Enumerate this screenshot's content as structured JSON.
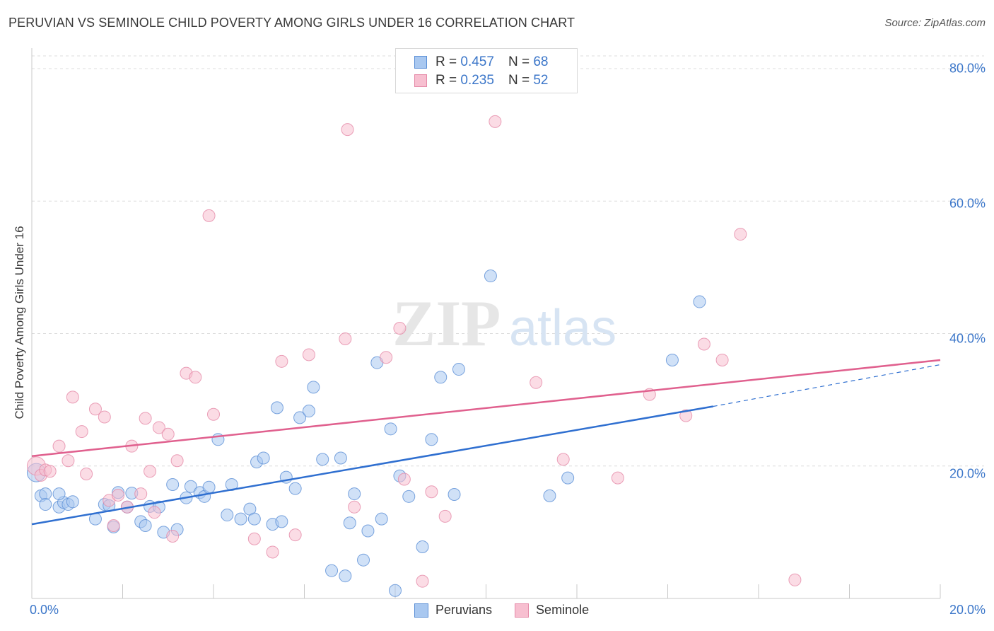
{
  "title": "PERUVIAN VS SEMINOLE CHILD POVERTY AMONG GIRLS UNDER 16 CORRELATION CHART",
  "source": "Source: ZipAtlas.com",
  "watermark": {
    "zip": "ZIP",
    "atlas": "atlas"
  },
  "legend": {
    "r_label": "R = ",
    "n_label": "N = ",
    "rows": [
      {
        "r": "0.457",
        "n": "68"
      },
      {
        "r": "0.235",
        "n": "52"
      }
    ]
  },
  "colors": {
    "blue_fill": "#a9c8f0",
    "blue_edge": "#5b8fd6",
    "blue_line": "#2f6fd0",
    "pink_fill": "#f7bfd0",
    "pink_edge": "#e58aa8",
    "pink_line": "#e0608e",
    "accent_text": "#3b76c9"
  },
  "chart_data": {
    "type": "scatter",
    "title": "PERUVIAN VS SEMINOLE CHILD POVERTY AMONG GIRLS UNDER 16 CORRELATION CHART",
    "xlabel": "",
    "ylabel": "Child Poverty Among Girls Under 16",
    "xlim": [
      0,
      20
    ],
    "ylim": [
      0,
      80
    ],
    "x_tick_labels": [
      "0.0%",
      "20.0%"
    ],
    "y_ticks": [
      20,
      40,
      60,
      80
    ],
    "y_tick_labels": [
      "20.0%",
      "40.0%",
      "60.0%",
      "80.0%"
    ],
    "grid": true,
    "legend_position": "top-center",
    "series": [
      {
        "name": "Peruvians",
        "r": 0.457,
        "n": 68,
        "trend": {
          "x0": 0,
          "y0": 11.2,
          "x1": 15.0,
          "y1": 29.0,
          "dashed_to_x": 20,
          "dashed_to_y": 35.3
        },
        "points": [
          [
            0.1,
            19.0
          ],
          [
            0.2,
            15.5
          ],
          [
            0.3,
            15.8
          ],
          [
            0.6,
            13.8
          ],
          [
            0.7,
            14.5
          ],
          [
            0.8,
            14.2
          ],
          [
            0.9,
            14.6
          ],
          [
            1.4,
            12.0
          ],
          [
            1.6,
            14.2
          ],
          [
            1.7,
            14.0
          ],
          [
            1.8,
            10.8
          ],
          [
            1.9,
            16.0
          ],
          [
            2.1,
            13.8
          ],
          [
            2.2,
            15.9
          ],
          [
            2.4,
            11.6
          ],
          [
            2.5,
            11.0
          ],
          [
            2.6,
            13.9
          ],
          [
            2.8,
            13.8
          ],
          [
            2.9,
            10.0
          ],
          [
            3.1,
            17.2
          ],
          [
            3.2,
            10.4
          ],
          [
            3.4,
            15.2
          ],
          [
            3.5,
            16.9
          ],
          [
            3.7,
            16.0
          ],
          [
            3.8,
            15.4
          ],
          [
            3.9,
            16.8
          ],
          [
            4.1,
            24.0
          ],
          [
            4.3,
            12.6
          ],
          [
            4.4,
            17.2
          ],
          [
            4.6,
            12.0
          ],
          [
            4.8,
            13.5
          ],
          [
            4.9,
            12.0
          ],
          [
            4.95,
            20.6
          ],
          [
            5.1,
            21.2
          ],
          [
            5.3,
            11.2
          ],
          [
            5.4,
            28.8
          ],
          [
            5.5,
            11.6
          ],
          [
            5.6,
            18.3
          ],
          [
            5.8,
            16.6
          ],
          [
            5.9,
            27.3
          ],
          [
            6.1,
            28.3
          ],
          [
            6.2,
            31.9
          ],
          [
            6.4,
            21.0
          ],
          [
            6.6,
            4.2
          ],
          [
            6.8,
            21.2
          ],
          [
            6.9,
            3.4
          ],
          [
            7.0,
            11.4
          ],
          [
            7.1,
            15.8
          ],
          [
            7.3,
            5.8
          ],
          [
            7.4,
            10.2
          ],
          [
            7.6,
            35.6
          ],
          [
            7.7,
            12.0
          ],
          [
            7.9,
            25.6
          ],
          [
            8.0,
            1.2
          ],
          [
            8.1,
            18.5
          ],
          [
            8.3,
            15.4
          ],
          [
            8.6,
            7.8
          ],
          [
            8.8,
            24.0
          ],
          [
            9.0,
            33.4
          ],
          [
            9.3,
            15.7
          ],
          [
            9.4,
            34.6
          ],
          [
            10.1,
            48.7
          ],
          [
            11.4,
            15.5
          ],
          [
            11.8,
            18.2
          ],
          [
            14.1,
            36.0
          ],
          [
            14.7,
            44.8
          ],
          [
            0.3,
            14.2
          ],
          [
            0.6,
            15.8
          ]
        ]
      },
      {
        "name": "Seminole",
        "r": 0.235,
        "n": 52,
        "trend": {
          "x0": 0,
          "y0": 21.5,
          "x1": 20,
          "y1": 36.0
        },
        "points": [
          [
            0.1,
            20.0
          ],
          [
            0.2,
            18.6
          ],
          [
            0.3,
            19.4
          ],
          [
            0.4,
            19.2
          ],
          [
            0.6,
            23.0
          ],
          [
            0.8,
            20.8
          ],
          [
            0.9,
            30.4
          ],
          [
            1.1,
            25.2
          ],
          [
            1.2,
            18.8
          ],
          [
            1.4,
            28.6
          ],
          [
            1.6,
            27.4
          ],
          [
            1.7,
            14.8
          ],
          [
            1.8,
            11.0
          ],
          [
            1.9,
            15.6
          ],
          [
            2.1,
            13.8
          ],
          [
            2.2,
            23.0
          ],
          [
            2.4,
            15.8
          ],
          [
            2.5,
            27.2
          ],
          [
            2.6,
            19.2
          ],
          [
            2.7,
            13.0
          ],
          [
            2.8,
            25.8
          ],
          [
            3.0,
            24.8
          ],
          [
            3.1,
            9.4
          ],
          [
            3.2,
            20.8
          ],
          [
            3.4,
            34.0
          ],
          [
            3.6,
            33.4
          ],
          [
            3.9,
            57.8
          ],
          [
            4.0,
            27.8
          ],
          [
            4.9,
            9.0
          ],
          [
            5.3,
            7.0
          ],
          [
            5.5,
            35.8
          ],
          [
            5.8,
            9.6
          ],
          [
            6.1,
            36.8
          ],
          [
            6.9,
            39.2
          ],
          [
            6.95,
            70.8
          ],
          [
            7.1,
            13.8
          ],
          [
            7.8,
            36.4
          ],
          [
            8.1,
            40.8
          ],
          [
            8.2,
            18.0
          ],
          [
            8.6,
            2.6
          ],
          [
            8.8,
            16.1
          ],
          [
            9.1,
            12.4
          ],
          [
            10.2,
            72.0
          ],
          [
            11.1,
            32.6
          ],
          [
            11.7,
            21.0
          ],
          [
            12.9,
            18.2
          ],
          [
            13.6,
            30.8
          ],
          [
            14.4,
            27.6
          ],
          [
            14.8,
            38.4
          ],
          [
            15.2,
            36.0
          ],
          [
            15.6,
            55.0
          ],
          [
            16.8,
            2.8
          ]
        ]
      }
    ]
  }
}
